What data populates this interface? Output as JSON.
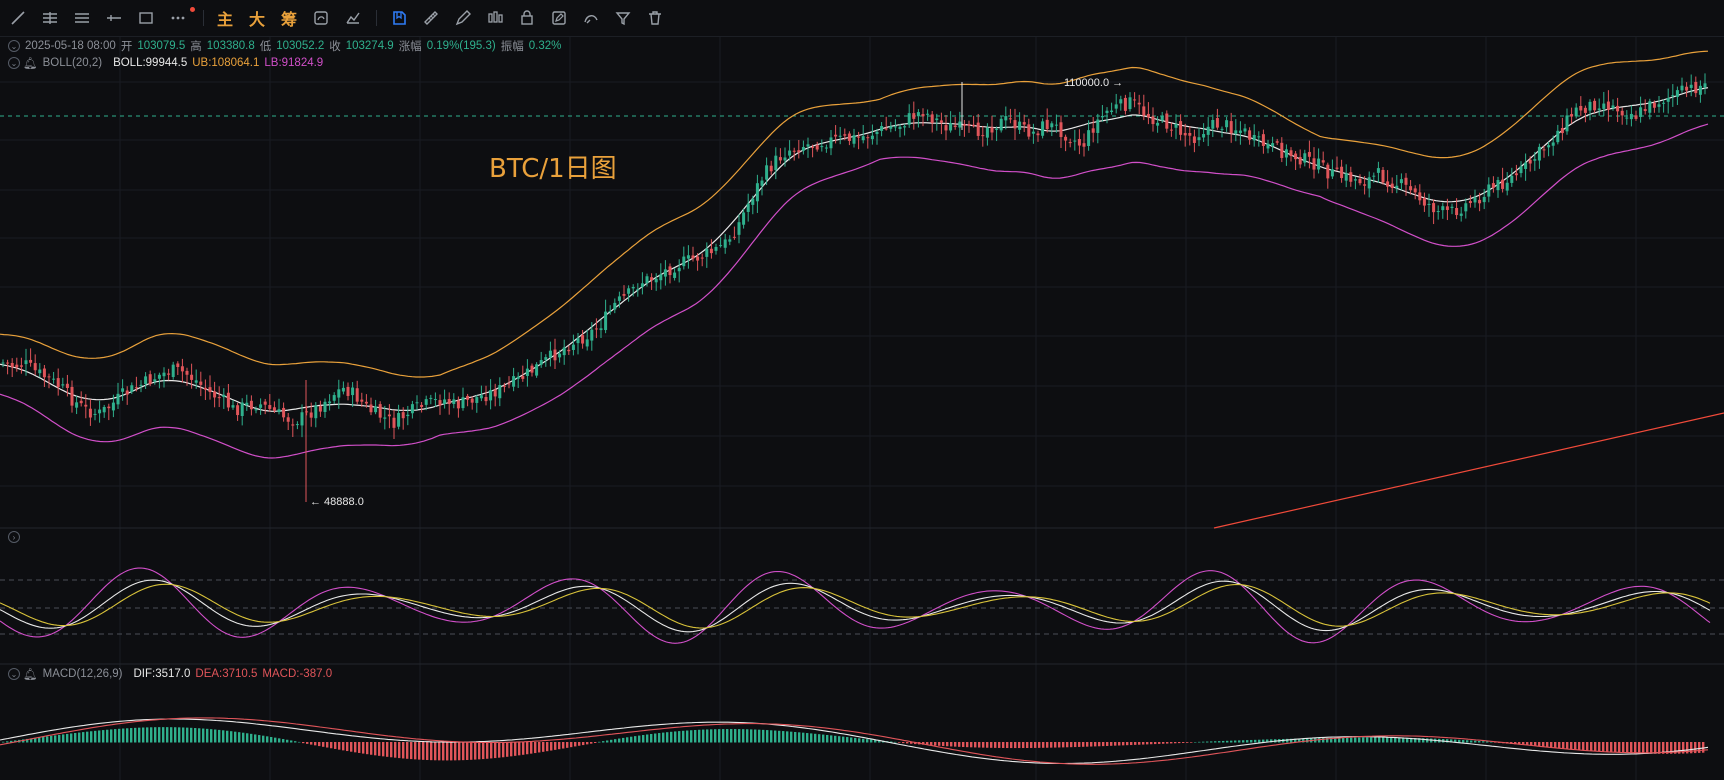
{
  "toolbar": {
    "tools": [
      "trend-line-icon",
      "horizontal-lines-icon",
      "parallel-channel-icon",
      "horizontal-ray-icon",
      "rectangle-icon",
      "more-icon"
    ],
    "labels": {
      "main": "主",
      "big": "大",
      "chips": "筹"
    },
    "tools2": [
      "replay-icon",
      "measure-icon",
      "magnet-icon"
    ],
    "tools3": [
      "bookmark-icon",
      "ruler-icon",
      "pencil-icon",
      "candles-icon",
      "lock-icon",
      "edit-icon",
      "visibility-icon",
      "filter-icon",
      "trash-icon"
    ],
    "accent": "#2f7cf6"
  },
  "ohlc": {
    "date": "2025-05-18 08:00",
    "open_label": "开",
    "open": "103079.5",
    "high_label": "高",
    "high": "103380.8",
    "low_label": "低",
    "low": "103052.2",
    "close_label": "收",
    "close": "103274.9",
    "change_label": "涨幅",
    "change": "0.19%(195.3)",
    "amp_label": "振幅",
    "amp": "0.32%"
  },
  "boll": {
    "name": "BOLL(20,2)",
    "mid": "BOLL:99944.5",
    "ub": "UB:108064.1",
    "lb": "LB:91824.9"
  },
  "macd": {
    "name": "MACD(12,26,9)",
    "dif": "DIF:3517.0",
    "dea": "DEA:3710.5",
    "macd": "MACD:-387.0"
  },
  "annotations": {
    "high": "110000.0 →",
    "low": "← 48888.0"
  },
  "chart_data": {
    "type": "candlestick",
    "title": "BTC/1日图",
    "last_close": 103274.9,
    "swing_high": 110000.0,
    "swing_low": 48888.0,
    "x": [
      "2025-05-18"
    ],
    "price_shape": [
      0.28,
      0.3,
      0.29,
      0.33,
      0.36,
      0.4,
      0.46,
      0.5,
      0.52,
      0.48,
      0.43,
      0.4,
      0.37,
      0.34,
      0.32,
      0.33,
      0.37,
      0.42,
      0.45,
      0.5,
      0.48,
      0.47,
      0.5,
      0.53,
      0.55,
      0.52,
      0.48,
      0.43,
      0.4,
      0.44,
      0.5,
      0.53,
      0.56,
      0.52,
      0.49,
      0.47,
      0.45,
      0.48,
      0.46,
      0.44,
      0.42,
      0.4,
      0.37,
      0.33,
      0.29,
      0.25,
      0.21,
      0.18,
      0.15,
      0.1,
      0.02,
      -0.02,
      -0.08,
      -0.1,
      -0.13,
      -0.16,
      -0.18,
      -0.2,
      -0.22,
      -0.26,
      -0.34,
      -0.46,
      -0.56,
      -0.63,
      -0.68,
      -0.7,
      -0.71,
      -0.72,
      -0.73,
      -0.73,
      -0.74,
      -0.76,
      -0.78,
      -0.79,
      -0.83,
      -0.86,
      -0.82,
      -0.79,
      -0.78,
      -0.76,
      -0.78,
      -0.8,
      -0.82,
      -0.78,
      -0.76,
      -0.8,
      -0.78,
      -0.74,
      -0.7,
      -0.8,
      -0.86,
      -0.88,
      -0.9,
      -0.85,
      -0.82,
      -0.8,
      -0.76,
      -0.74,
      -0.78,
      -0.8,
      -0.79,
      -0.77,
      -0.72,
      -0.7,
      -0.68,
      -0.66,
      -0.64,
      -0.62,
      -0.58,
      -0.56,
      -0.55,
      -0.54,
      -0.57,
      -0.54,
      -0.52,
      -0.48,
      -0.44,
      -0.4,
      -0.4,
      -0.43,
      -0.46,
      -0.5,
      -0.53,
      -0.56,
      -0.6,
      -0.66,
      -0.72,
      -0.79,
      -0.86,
      -0.88,
      -0.9,
      -0.88,
      -0.86,
      -0.84,
      -0.88,
      -0.91,
      -0.93,
      -0.95,
      -0.97,
      -0.98
    ],
    "lines": {
      "BOLL": "#e8e8e8",
      "UB": "#e9a13b",
      "LB": "#d14fc9"
    },
    "colors": {
      "up": "#2fb08d",
      "down": "#e0555a",
      "ma_line": "#f04a3a"
    }
  }
}
